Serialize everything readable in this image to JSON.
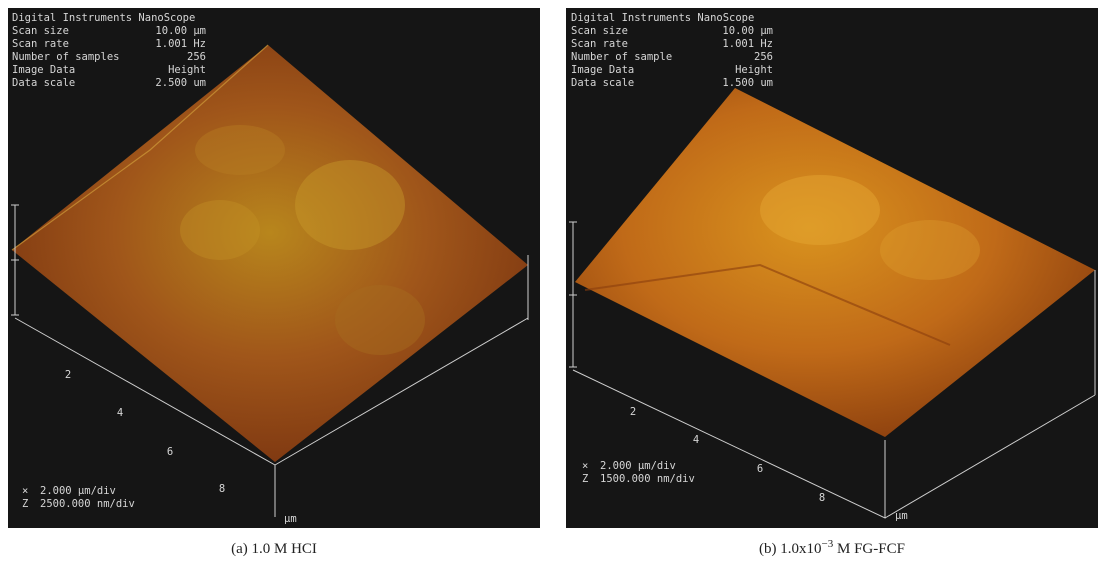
{
  "panels": [
    {
      "header": "Digital Instruments NanoScope",
      "rows": [
        [
          "Scan size",
          "10.00 µm"
        ],
        [
          "Scan rate",
          "1.001 Hz"
        ],
        [
          "Number of samples",
          "256"
        ],
        [
          "Image Data",
          "Height"
        ],
        [
          "Data scale",
          "2.500 um"
        ]
      ],
      "axis_labels": [
        "2",
        "4",
        "6",
        "8"
      ],
      "axis_unit": "µm",
      "footer": [
        [
          "×",
          "2.000 µm/div"
        ],
        [
          "Z",
          "2500.000 nm/div"
        ]
      ],
      "caption": "(a) 1.0 M HCI"
    },
    {
      "header": "Digital Instruments NanoScope",
      "rows": [
        [
          "Scan size",
          "10.00 µm"
        ],
        [
          "Scan rate",
          "1.001 Hz"
        ],
        [
          "Number of sample",
          "256"
        ],
        [
          "Image Data",
          "Height"
        ],
        [
          "Data scale",
          "1.500 um"
        ]
      ],
      "axis_labels": [
        "2",
        "4",
        "6",
        "8"
      ],
      "axis_unit": "µm",
      "footer": [
        [
          "×",
          "2.000 µm/div"
        ],
        [
          "Z",
          "1500.000 nm/div"
        ]
      ],
      "caption": "(b) 1.0x10",
      "caption_sup": "−3",
      "caption_suffix": " M FG-FCF"
    }
  ]
}
